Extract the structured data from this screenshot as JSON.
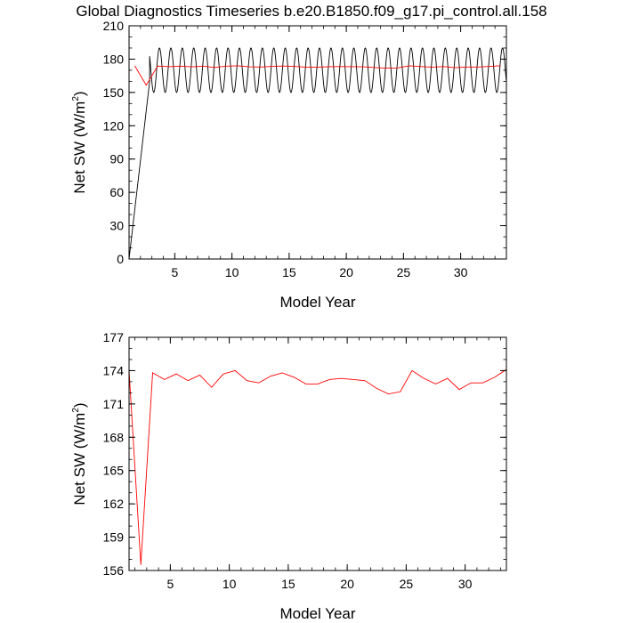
{
  "title": "Global Diagnostics Timeseries b.e20.B1850.f09_g17.pi_control.all.158",
  "colors": {
    "monthly": "#000000",
    "annual": "#ff0000",
    "axes": "#000000"
  },
  "chart_data": [
    {
      "type": "line",
      "xlabel": "Model Year",
      "ylabel": {
        "text": "Net SW (W/m",
        "sup": "2",
        "close": ")"
      },
      "xlim": [
        1,
        34
      ],
      "ylim": [
        0,
        210
      ],
      "xticks": [
        5,
        10,
        15,
        20,
        25,
        30
      ],
      "yticks": [
        0,
        30,
        60,
        90,
        120,
        150,
        180,
        210
      ],
      "yminor_step": 10,
      "xminor_step": 1,
      "monthly": {
        "x_start": 1,
        "x_end": 34,
        "start_value": 0,
        "ramp_end_x": 2.8,
        "ramp_end_value": 160,
        "cycle_mean": 170,
        "cycle_amplitude": 20,
        "cycles_per_year": 1
      },
      "annual": {
        "x": [
          1.5,
          2.5,
          3.5,
          4.5,
          5.5,
          6.5,
          7.5,
          8.5,
          9.5,
          10.5,
          11.5,
          12.5,
          13.5,
          14.5,
          15.5,
          16.5,
          17.5,
          18.5,
          19.5,
          20.5,
          21.5,
          22.5,
          23.5,
          24.5,
          25.5,
          26.5,
          27.5,
          28.5,
          29.5,
          30.5,
          31.5,
          32.5,
          33.5
        ],
        "y": [
          174,
          156.5,
          173.8,
          173.2,
          173.7,
          173.1,
          173.6,
          172.5,
          173.7,
          174.0,
          173.1,
          172.9,
          173.5,
          173.8,
          173.4,
          172.8,
          172.8,
          173.2,
          173.3,
          173.2,
          173.1,
          172.4,
          171.9,
          172.1,
          174.0,
          173.3,
          172.8,
          173.3,
          172.3,
          172.9,
          172.9,
          173.4,
          174.1
        ]
      }
    },
    {
      "type": "line",
      "xlabel": "Model Year",
      "ylabel": {
        "text": "Net SW (W/m",
        "sup": "2",
        "close": ")"
      },
      "xlim": [
        1.5,
        33.5
      ],
      "ylim": [
        156,
        177
      ],
      "xticks": [
        5,
        10,
        15,
        20,
        25,
        30
      ],
      "yticks": [
        156,
        159,
        162,
        165,
        168,
        171,
        174,
        177
      ],
      "yminor_step": 1,
      "xminor_step": 1,
      "annual": {
        "x": [
          1.5,
          2.5,
          3.5,
          4.5,
          5.5,
          6.5,
          7.5,
          8.5,
          9.5,
          10.5,
          11.5,
          12.5,
          13.5,
          14.5,
          15.5,
          16.5,
          17.5,
          18.5,
          19.5,
          20.5,
          21.5,
          22.5,
          23.5,
          24.5,
          25.5,
          26.5,
          27.5,
          28.5,
          29.5,
          30.5,
          31.5,
          32.5,
          33.5
        ],
        "y": [
          174,
          156.5,
          173.8,
          173.2,
          173.7,
          173.1,
          173.6,
          172.5,
          173.7,
          174.0,
          173.1,
          172.9,
          173.5,
          173.8,
          173.4,
          172.8,
          172.8,
          173.2,
          173.3,
          173.2,
          173.1,
          172.4,
          171.9,
          172.1,
          174.0,
          173.3,
          172.8,
          173.3,
          172.3,
          172.9,
          172.9,
          173.4,
          174.1
        ]
      }
    }
  ]
}
